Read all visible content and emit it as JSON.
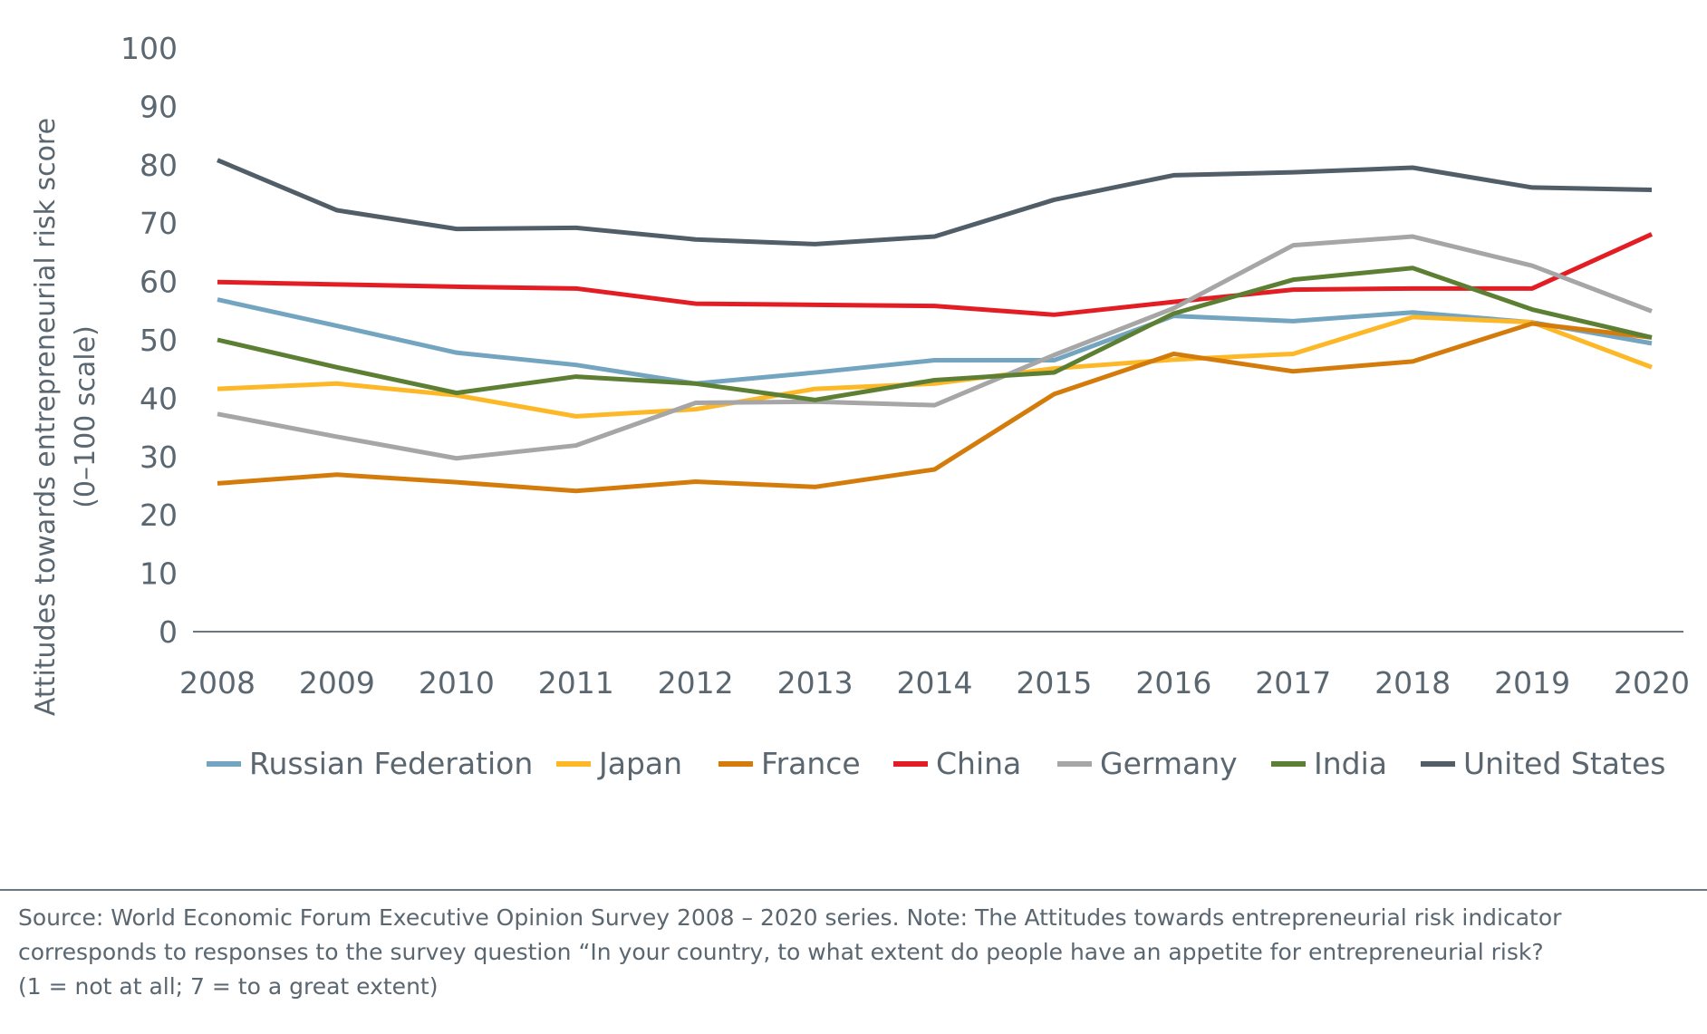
{
  "chart_data": {
    "type": "line",
    "title": "",
    "xlabel": "",
    "ylabel": "Attitudes towards entrepreneurial risk score",
    "ylabel_sub": "(0–100 scale)",
    "ylim": [
      0,
      100
    ],
    "yticks": [
      0,
      10,
      20,
      30,
      40,
      50,
      60,
      70,
      80,
      90,
      100
    ],
    "x": [
      2008,
      2009,
      2010,
      2011,
      2012,
      2013,
      2014,
      2015,
      2016,
      2017,
      2018,
      2019,
      2020
    ],
    "grid": false,
    "legend_position": "bottom",
    "series": [
      {
        "name": "Russian Federation",
        "color": "#74a5c0",
        "values": [
          56.9,
          52.4,
          47.8,
          45.7,
          42.5,
          44.4,
          46.5,
          46.5,
          54.1,
          53.2,
          54.7,
          53.0,
          49.4
        ]
      },
      {
        "name": "Japan",
        "color": "#fdb827",
        "values": [
          41.6,
          42.5,
          40.5,
          36.9,
          38.1,
          41.6,
          42.5,
          45.1,
          46.6,
          47.6,
          53.9,
          53.0,
          45.3
        ]
      },
      {
        "name": "France",
        "color": "#d47c0b",
        "values": [
          25.4,
          26.9,
          25.6,
          24.1,
          25.7,
          24.8,
          27.8,
          40.7,
          47.6,
          44.6,
          46.3,
          52.8,
          50.4
        ]
      },
      {
        "name": "China",
        "color": "#e21e24",
        "values": [
          59.9,
          59.5,
          59.1,
          58.8,
          56.2,
          56.0,
          55.8,
          54.3,
          56.5,
          58.6,
          58.8,
          58.8,
          68.1
        ]
      },
      {
        "name": "Germany",
        "color": "#a6a6a6",
        "values": [
          37.3,
          33.4,
          29.7,
          31.9,
          39.2,
          39.4,
          38.8,
          47.4,
          55.4,
          66.2,
          67.7,
          62.7,
          54.9
        ]
      },
      {
        "name": "India",
        "color": "#5d7f33",
        "values": [
          50.0,
          45.3,
          40.9,
          43.7,
          42.5,
          39.7,
          43.1,
          44.4,
          54.5,
          60.3,
          62.3,
          55.2,
          50.4
        ]
      },
      {
        "name": "United States",
        "color": "#515e68",
        "values": [
          80.8,
          72.2,
          69.0,
          69.2,
          67.2,
          66.4,
          67.7,
          74.0,
          78.2,
          78.7,
          79.5,
          76.1,
          75.7
        ]
      }
    ]
  },
  "footnote": {
    "line1": "Source: World Economic Forum Executive Opinion Survey 2008 – 2020 series. Note: The Attitudes towards entrepreneurial risk indicator",
    "line2": "corresponds to responses to the survey question “In your country, to what extent do people have an appetite for entrepreneurial risk?",
    "line3": "(1 = not at all; 7 = to a great extent)"
  }
}
